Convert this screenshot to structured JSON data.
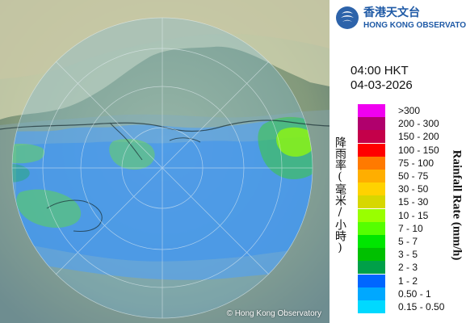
{
  "header": {
    "logo_cn": "香港天文台",
    "logo_en": "HONG KONG OBSERVATORY"
  },
  "radar": {
    "time": "04:00 HKT",
    "date": "04-03-2026",
    "copyright": "© Hong Kong Observatory"
  },
  "legend": {
    "cn_title": "降雨率(毫米/小時)",
    "en_title": "Rainfall Rate (mm/h)",
    "items": [
      {
        "label": ">300",
        "color": "#f000f0"
      },
      {
        "label": "200 - 300",
        "color": "#b0006d"
      },
      {
        "label": "150 - 200",
        "color": "#c4004a"
      },
      {
        "label": "100 - 150",
        "color": "#ff0000"
      },
      {
        "label": "75 - 100",
        "color": "#ff7a00"
      },
      {
        "label": "50 - 75",
        "color": "#ffae00"
      },
      {
        "label": "30 - 50",
        "color": "#ffd200"
      },
      {
        "label": "15 - 30",
        "color": "#d7d700"
      },
      {
        "label": "10 - 15",
        "color": "#99ff00"
      },
      {
        "label": "7 - 10",
        "color": "#55ff00"
      },
      {
        "label": "5 - 7",
        "color": "#00e600"
      },
      {
        "label": "3 - 5",
        "color": "#00c000"
      },
      {
        "label": "2 - 3",
        "color": "#00a048"
      },
      {
        "label": "1 - 2",
        "color": "#0066ff"
      },
      {
        "label": "0.50 - 1",
        "color": "#00a8ff"
      },
      {
        "label": "0.15 - 0.50",
        "color": "#00d9ff"
      }
    ]
  }
}
